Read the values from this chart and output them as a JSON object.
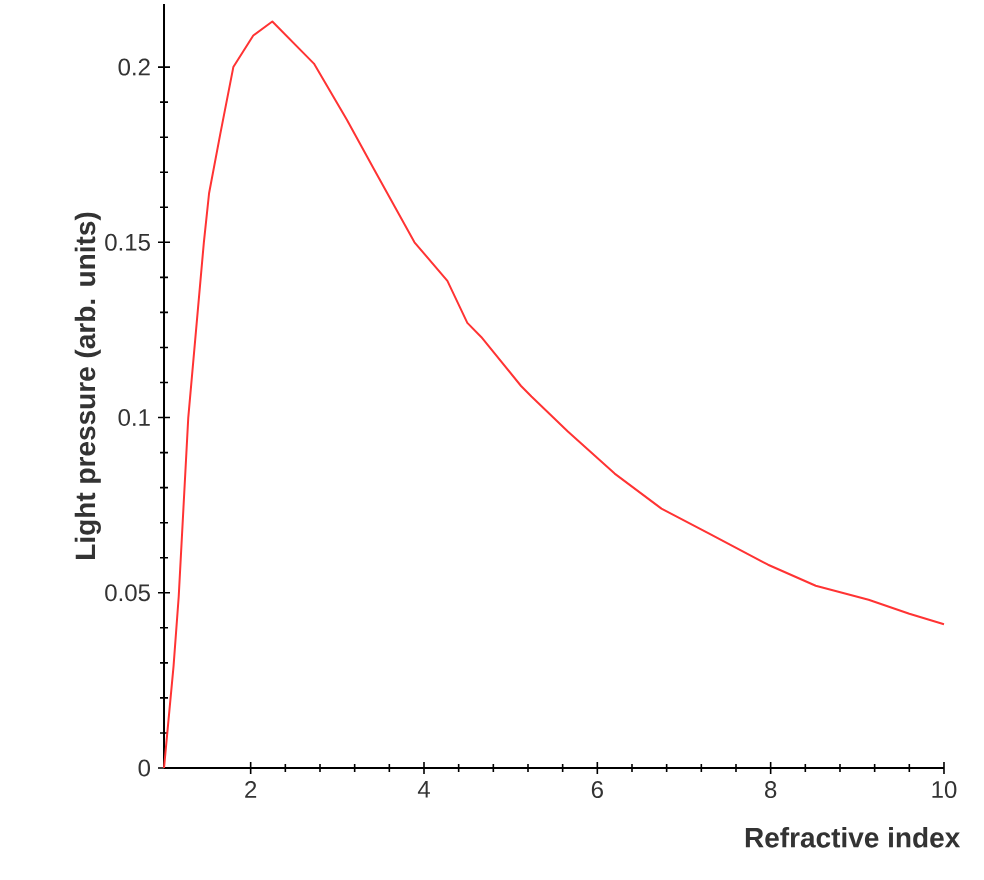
{
  "chart_data": {
    "type": "line",
    "xlabel": "Refractive index",
    "ylabel": "Light pressure (arb. units)",
    "color": "#ff3333",
    "x": [
      1.0,
      1.11,
      1.17,
      1.28,
      1.46,
      1.52,
      1.65,
      1.8,
      2.03,
      2.25,
      2.73,
      3.11,
      3.42,
      3.89,
      4.27,
      4.5,
      4.66,
      5.12,
      5.24,
      5.66,
      6.2,
      6.74,
      7.28,
      7.97,
      8.52,
      9.13,
      9.6,
      10.0
    ],
    "values": [
      0.0,
      0.029,
      0.049,
      0.1,
      0.15,
      0.164,
      0.181,
      0.2,
      0.209,
      0.213,
      0.201,
      0.185,
      0.171,
      0.15,
      0.139,
      0.127,
      0.123,
      0.109,
      0.106,
      0.096,
      0.084,
      0.074,
      0.067,
      0.058,
      0.052,
      0.048,
      0.044,
      0.041
    ],
    "xlim": [
      1,
      10
    ],
    "ylim": [
      0,
      0.218
    ],
    "xticks": [
      2,
      4,
      6,
      8,
      10
    ],
    "yticks": [
      0,
      0.05,
      0.1,
      0.15,
      0.2
    ]
  }
}
